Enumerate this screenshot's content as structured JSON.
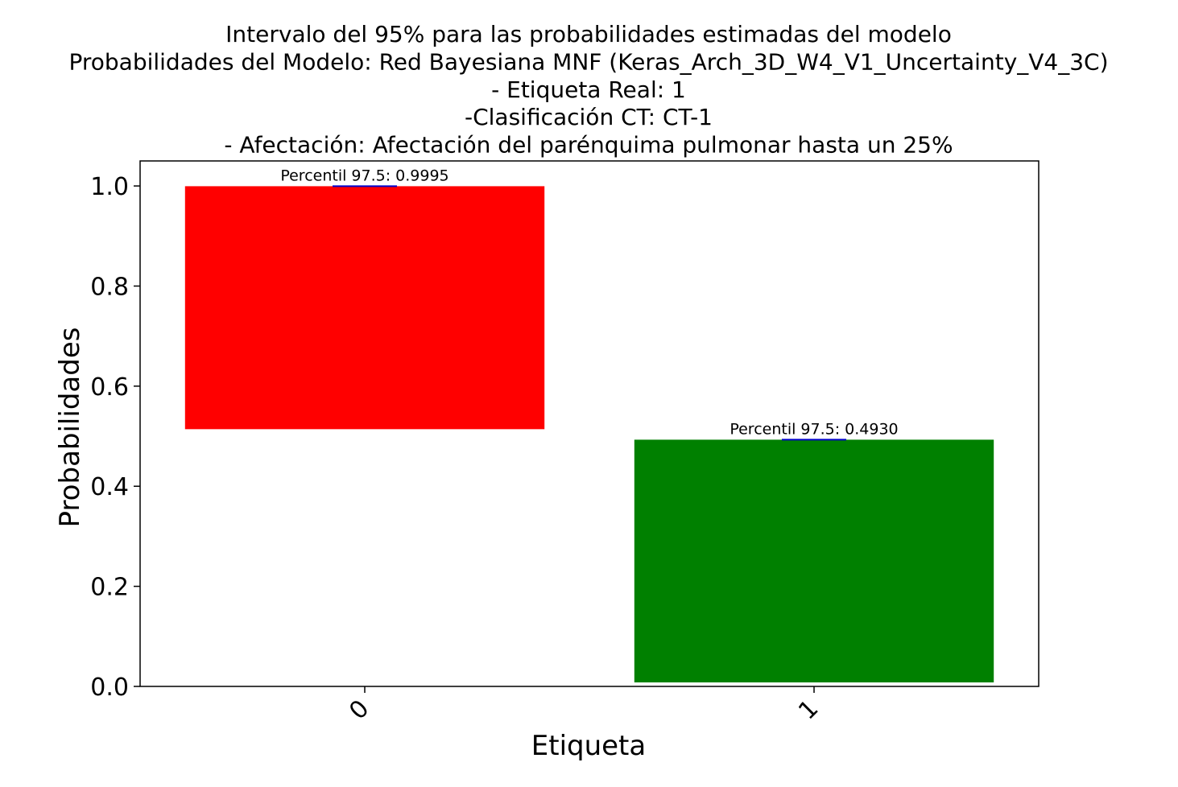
{
  "chart_data": {
    "type": "bar",
    "title_lines": [
      "Intervalo del 95% para las probabilidades estimadas del modelo",
      "Probabilidades del Modelo: Red Bayesiana MNF (Keras_Arch_3D_W4_V1_Uncertainty_V4_3C)",
      "- Etiqueta Real: 1",
      "-Clasificación CT: CT-1",
      "- Afectación: Afectación del parénquima pulmonar hasta un 25%"
    ],
    "xlabel": "Etiqueta",
    "ylabel": "Probabilidades",
    "categories": [
      "0",
      "1"
    ],
    "bars": [
      {
        "category": "0",
        "bottom": 0.514,
        "top": 0.9995,
        "color": "#ff0000",
        "annotation": "Percentil 97.5: 0.9995"
      },
      {
        "category": "1",
        "bottom": 0.008,
        "top": 0.493,
        "color": "#008000",
        "annotation": "Percentil 97.5: 0.4930"
      }
    ],
    "marker_color": "#0000cc",
    "ylim": [
      0,
      1.05
    ],
    "yticks": [
      0.0,
      0.2,
      0.4,
      0.6,
      0.8,
      1.0
    ],
    "ytick_labels": [
      "0.0",
      "0.2",
      "0.4",
      "0.6",
      "0.8",
      "1.0"
    ],
    "grid": false,
    "legend": "none"
  }
}
